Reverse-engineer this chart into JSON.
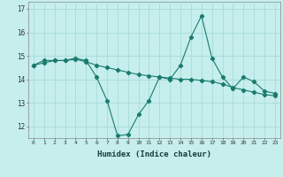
{
  "xlabel": "Humidex (Indice chaleur)",
  "background_color": "#c5eeec",
  "grid_color": "#a8dbd9",
  "line_color": "#1a7a6e",
  "x_ticks": [
    0,
    1,
    2,
    3,
    4,
    5,
    6,
    7,
    8,
    9,
    10,
    11,
    12,
    13,
    14,
    15,
    16,
    17,
    18,
    19,
    20,
    21,
    22,
    23
  ],
  "ylim": [
    11.5,
    17.3
  ],
  "yticks": [
    12,
    13,
    14,
    15,
    16,
    17
  ],
  "series1": {
    "x": [
      0,
      1,
      2,
      3,
      4,
      5,
      6,
      7,
      8,
      9,
      10,
      11,
      12,
      13,
      14,
      15,
      16,
      17,
      18,
      19,
      20,
      21,
      22,
      23
    ],
    "y": [
      14.6,
      14.8,
      14.8,
      14.8,
      14.9,
      14.8,
      14.1,
      13.1,
      11.6,
      11.65,
      12.5,
      13.1,
      14.1,
      14.0,
      14.6,
      15.8,
      16.7,
      14.9,
      14.1,
      13.6,
      14.1,
      13.9,
      13.5,
      13.4
    ]
  },
  "series2": {
    "x": [
      0,
      1,
      2,
      3,
      4,
      5,
      6,
      7,
      8,
      9,
      10,
      11,
      12,
      13,
      14,
      15,
      16,
      17,
      18,
      19,
      20,
      21,
      22,
      23
    ],
    "y": [
      14.6,
      14.7,
      14.8,
      14.8,
      14.85,
      14.75,
      14.6,
      14.5,
      14.4,
      14.3,
      14.2,
      14.15,
      14.1,
      14.05,
      14.0,
      14.0,
      13.95,
      13.9,
      13.8,
      13.65,
      13.55,
      13.45,
      13.35,
      13.3
    ]
  }
}
